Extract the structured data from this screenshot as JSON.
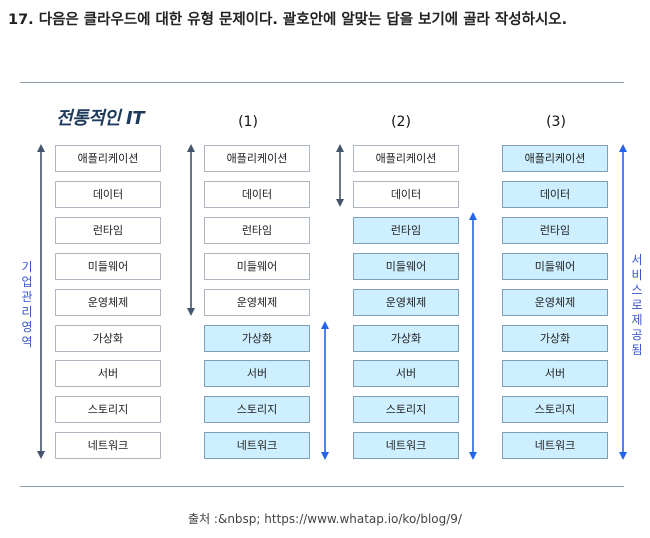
{
  "question": "17. 다음은 클라우드에 대한 유형 문제이다. 괄호안에 알맞는 답을 보기에 골라 작성하시오.",
  "diagram": {
    "title": "전통적인 IT",
    "col_labels": [
      "(1)",
      "(2)",
      "(3)"
    ],
    "layers": [
      "애플리케이션",
      "데이터",
      "런타임",
      "미들웨어",
      "운영체제",
      "가상화",
      "서버",
      "스토리지",
      "네트워크"
    ],
    "left_label": "기업관리영역",
    "right_label": "서비스로제공됨",
    "colors": {
      "highlight": "#cdefff",
      "arrow_dark": "#44546a",
      "arrow_blue": "#2563eb"
    }
  },
  "source": "출처 :&nbsp; https://www.whatap.io/ko/blog/9/"
}
